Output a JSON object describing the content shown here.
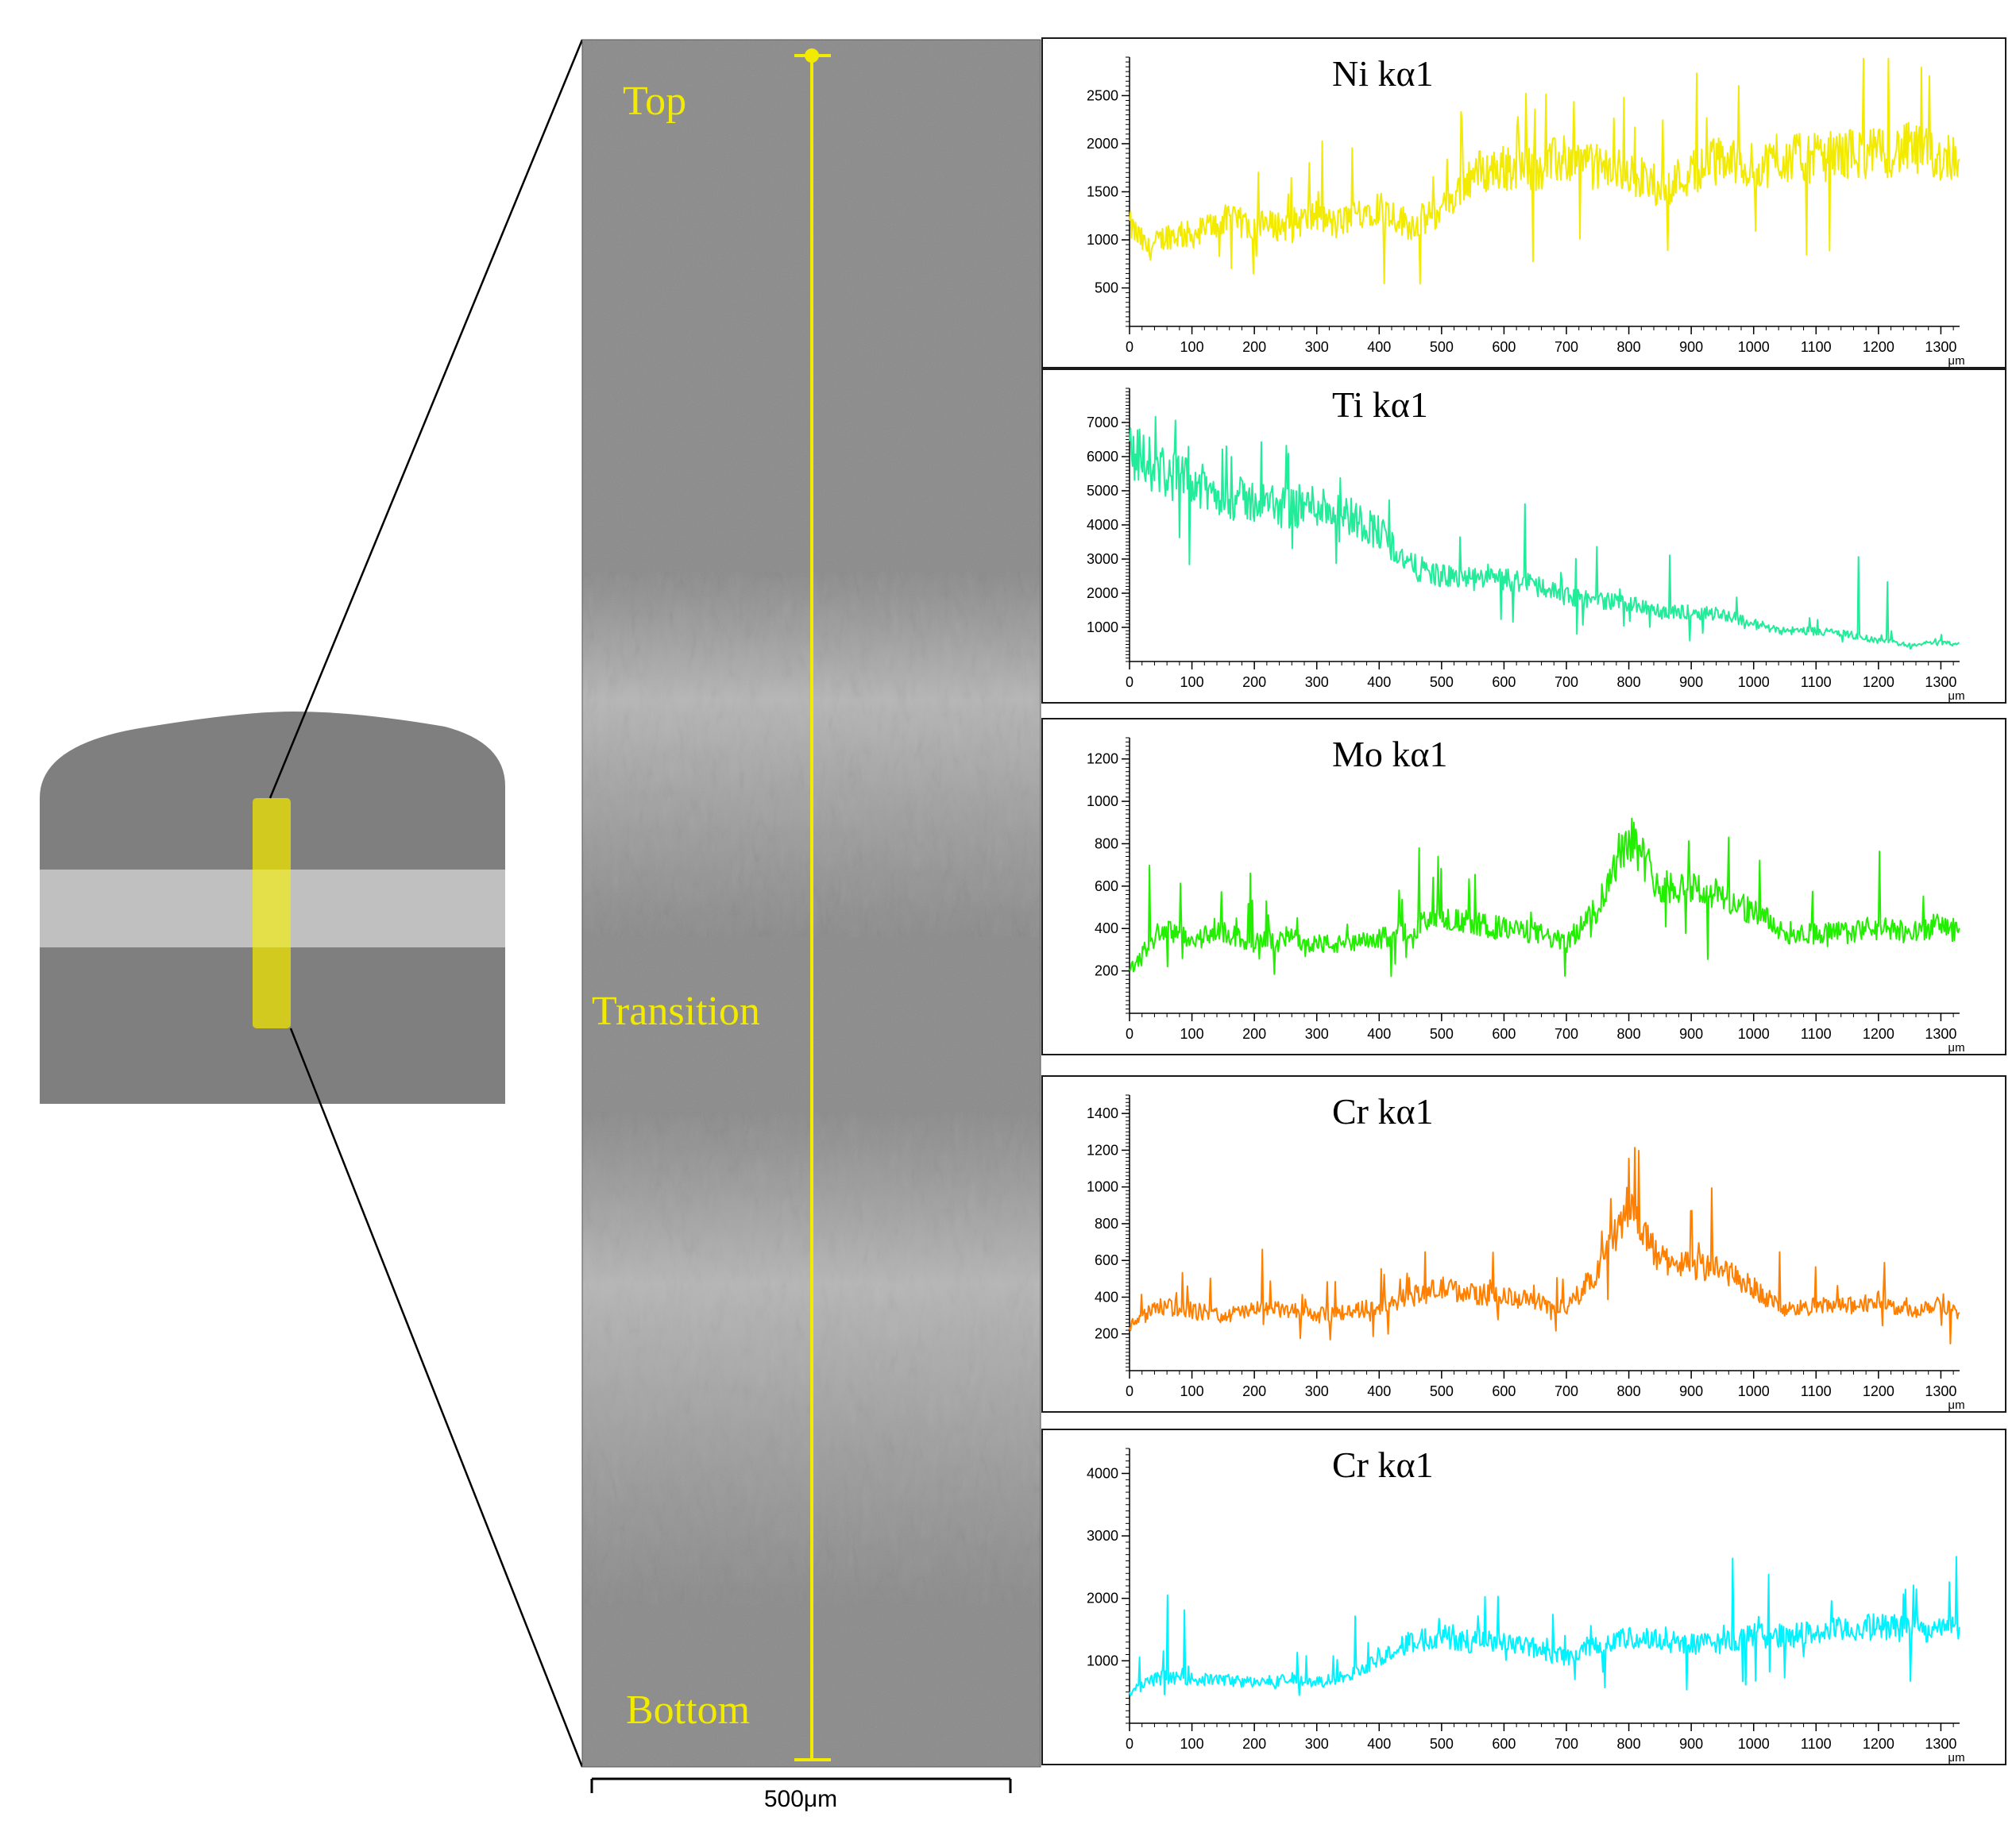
{
  "micrograph": {
    "zone_labels": {
      "top": "Top",
      "transition": "Transition",
      "bottom": "Bottom"
    },
    "scale_bar_label": "500μm",
    "line_color": "#f2ea00"
  },
  "sample_colors": {
    "body": "#7f7f7f",
    "band": "#c0c0c0",
    "marker": "#d2ca1e",
    "marker_highlight": "#e4e04a"
  },
  "chart_data": [
    {
      "type": "line",
      "title": "Ni kα1",
      "color": "#f2ea00",
      "xlabel": "μm",
      "xlim": [
        0,
        1330
      ],
      "ylim": [
        100,
        2900
      ],
      "x_ticks": [
        0,
        100,
        200,
        300,
        400,
        500,
        600,
        700,
        800,
        900,
        1000,
        1100,
        1200,
        1300
      ],
      "y_ticks": [
        500,
        1000,
        1500,
        2000,
        2500
      ],
      "series": [
        {
          "x": [
            0,
            30,
            60,
            100,
            150,
            200,
            250,
            300,
            330,
            370,
            400,
            450,
            500,
            550,
            600,
            650,
            700,
            750,
            800,
            850,
            900,
            950,
            1000,
            1050,
            1100,
            1150,
            1200,
            1250,
            1300,
            1330
          ],
          "y": [
            1150,
            900,
            1050,
            1050,
            1200,
            1150,
            1150,
            1250,
            1150,
            1300,
            1350,
            1150,
            1300,
            1700,
            1750,
            1750,
            1850,
            1750,
            1700,
            1550,
            1700,
            1850,
            1750,
            1850,
            1850,
            1900,
            1900,
            1950,
            1850,
            1900
          ]
        }
      ]
    },
    {
      "type": "line",
      "title": "Ti kα1",
      "color": "#22ec99",
      "xlabel": "μm",
      "xlim": [
        0,
        1330
      ],
      "ylim": [
        0,
        8000
      ],
      "x_ticks": [
        0,
        100,
        200,
        300,
        400,
        500,
        600,
        700,
        800,
        900,
        1000,
        1100,
        1200,
        1300
      ],
      "y_ticks": [
        1000,
        2000,
        3000,
        4000,
        5000,
        6000,
        7000
      ],
      "series": [
        {
          "x": [
            0,
            50,
            100,
            150,
            200,
            250,
            300,
            350,
            400,
            450,
            500,
            550,
            600,
            650,
            700,
            750,
            800,
            850,
            900,
            950,
            1000,
            1050,
            1100,
            1150,
            1200,
            1250,
            1300,
            1330
          ],
          "y": [
            6200,
            5600,
            5200,
            4800,
            4700,
            4500,
            4600,
            4300,
            3800,
            2800,
            2500,
            2400,
            2400,
            2300,
            1900,
            1800,
            1700,
            1450,
            1450,
            1400,
            1100,
            900,
            900,
            800,
            600,
            500,
            550,
            500
          ]
        }
      ]
    },
    {
      "type": "line",
      "title": "Mo kα1",
      "color": "#22ee00",
      "xlabel": "μm",
      "xlim": [
        0,
        1330
      ],
      "ylim": [
        0,
        1300
      ],
      "x_ticks": [
        0,
        100,
        200,
        300,
        400,
        500,
        600,
        700,
        800,
        900,
        1000,
        1100,
        1200,
        1300
      ],
      "y_ticks": [
        200,
        400,
        600,
        800,
        1000,
        1200
      ],
      "series": [
        {
          "x": [
            0,
            50,
            100,
            150,
            200,
            250,
            300,
            350,
            400,
            450,
            500,
            550,
            600,
            650,
            700,
            750,
            800,
            850,
            900,
            950,
            1000,
            1050,
            1100,
            1150,
            1200,
            1250,
            1300,
            1330
          ],
          "y": [
            200,
            400,
            350,
            380,
            330,
            360,
            330,
            320,
            350,
            400,
            450,
            420,
            400,
            380,
            330,
            500,
            850,
            600,
            600,
            550,
            480,
            380,
            380,
            380,
            400,
            380,
            420,
            380
          ]
        }
      ]
    },
    {
      "type": "line",
      "title": "Cr kα1",
      "color": "#ff7f00",
      "xlabel": "μm",
      "xlim": [
        0,
        1330
      ],
      "ylim": [
        0,
        1500
      ],
      "x_ticks": [
        0,
        100,
        200,
        300,
        400,
        500,
        600,
        700,
        800,
        900,
        1000,
        1100,
        1200,
        1300
      ],
      "y_ticks": [
        200,
        400,
        600,
        800,
        1000,
        1200,
        1400
      ],
      "series": [
        {
          "x": [
            0,
            50,
            100,
            150,
            200,
            250,
            300,
            350,
            400,
            450,
            500,
            550,
            600,
            650,
            700,
            750,
            800,
            850,
            900,
            950,
            1000,
            1050,
            1100,
            1150,
            1200,
            1250,
            1300,
            1330
          ],
          "y": [
            250,
            350,
            330,
            300,
            330,
            330,
            300,
            320,
            350,
            400,
            450,
            420,
            400,
            380,
            330,
            550,
            900,
            600,
            580,
            550,
            450,
            330,
            350,
            350,
            380,
            320,
            380,
            300
          ]
        }
      ]
    },
    {
      "type": "line",
      "title": "Cr kα1",
      "color": "#00f2ff",
      "xlabel": "μm",
      "xlim": [
        0,
        1330
      ],
      "ylim": [
        0,
        4400
      ],
      "x_ticks": [
        0,
        100,
        200,
        300,
        400,
        500,
        600,
        700,
        800,
        900,
        1000,
        1100,
        1200,
        1300
      ],
      "y_ticks": [
        1000,
        2000,
        3000,
        4000
      ],
      "series": [
        {
          "x": [
            0,
            50,
            100,
            150,
            200,
            250,
            300,
            350,
            400,
            450,
            500,
            550,
            600,
            650,
            700,
            750,
            800,
            850,
            900,
            950,
            1000,
            1050,
            1100,
            1150,
            1200,
            1250,
            1300,
            1330
          ],
          "y": [
            500,
            750,
            700,
            700,
            650,
            700,
            650,
            750,
            1050,
            1300,
            1400,
            1300,
            1350,
            1200,
            1050,
            1300,
            1350,
            1350,
            1250,
            1300,
            1400,
            1400,
            1450,
            1500,
            1550,
            1500,
            1500,
            1550
          ]
        }
      ]
    }
  ]
}
